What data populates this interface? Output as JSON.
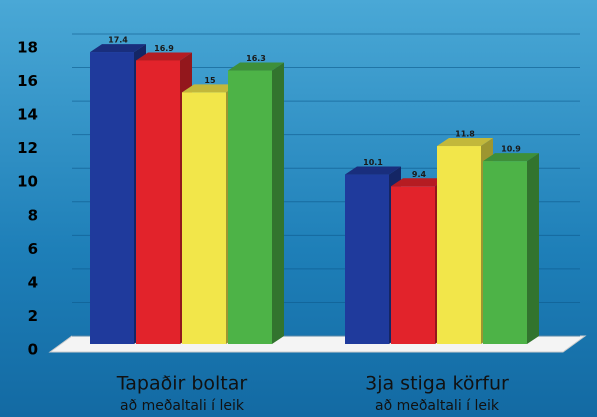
{
  "chart_data": {
    "type": "bar3d",
    "categories": [
      "Tapaðir boltar",
      "3ja stiga körfur"
    ],
    "category_subtitles": [
      "að meðaltali í leik",
      "að meðaltali í leik"
    ],
    "series": [
      {
        "color": "#1f3a9c",
        "values": [
          17.4,
          10.1
        ]
      },
      {
        "color": "#e2232b",
        "values": [
          16.9,
          9.4
        ]
      },
      {
        "color": "#f2e64a",
        "values": [
          15,
          11.8
        ]
      },
      {
        "color": "#4db347",
        "values": [
          16.3,
          10.9
        ]
      }
    ],
    "ylim": [
      0,
      18
    ],
    "yticks": [
      0,
      2,
      4,
      6,
      8,
      10,
      12,
      14,
      16,
      18
    ],
    "grid": true
  }
}
